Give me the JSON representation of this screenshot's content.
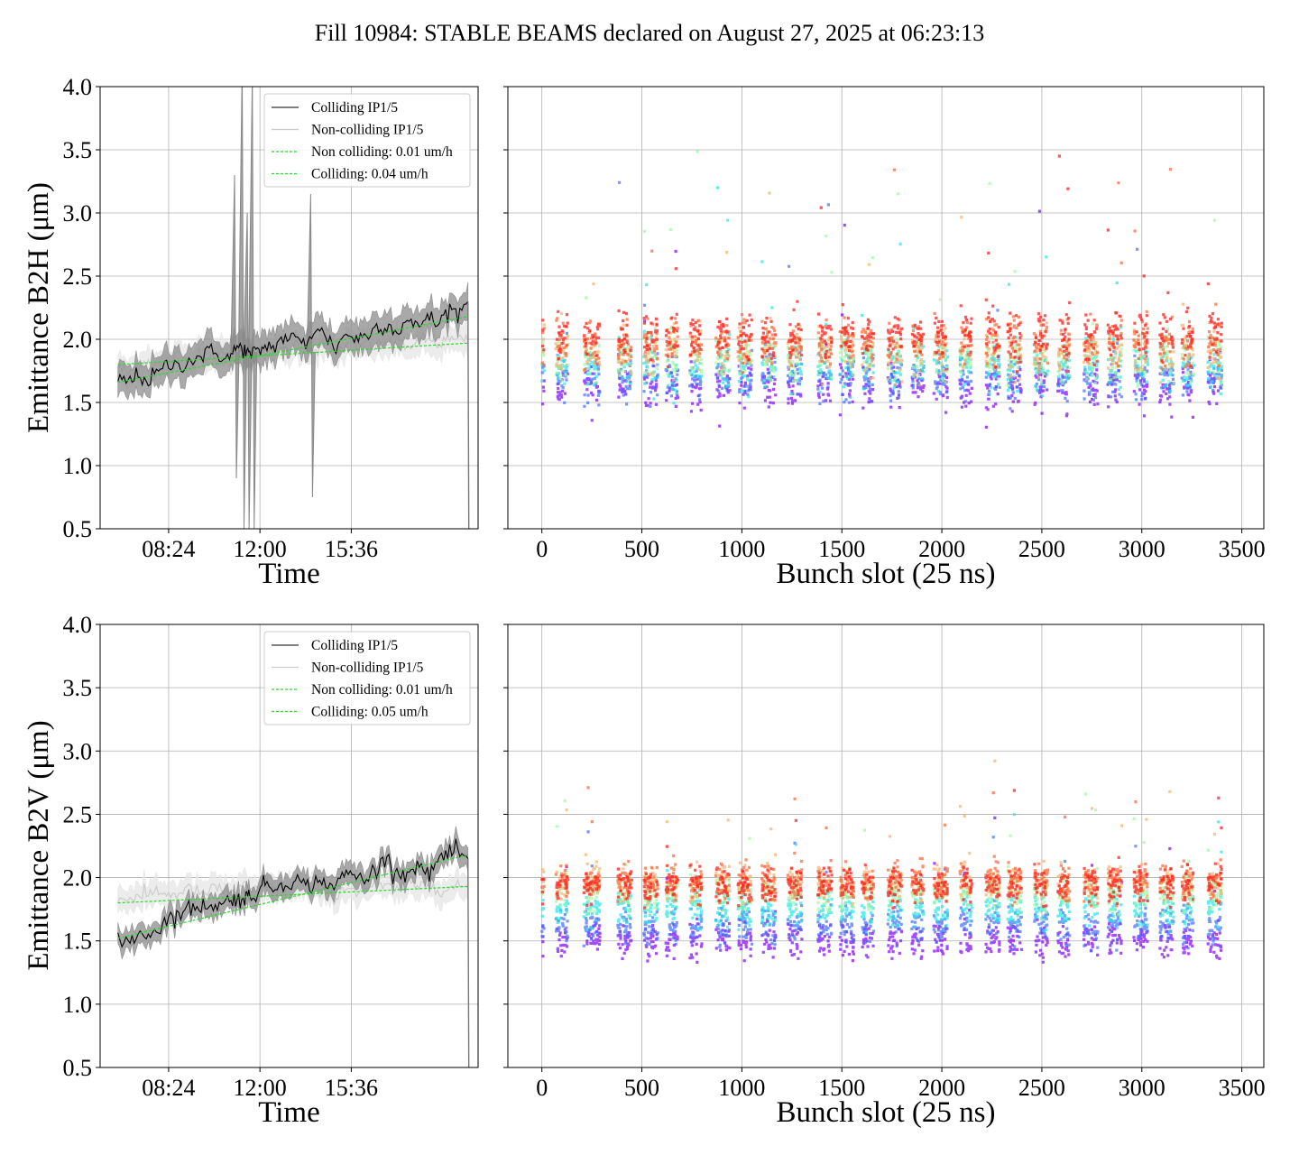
{
  "figure_title": "Fill 10984: STABLE BEAMS declared on August 27, 2025 at 06:23:13",
  "colors": {
    "colliding": "#000000",
    "colliding_band": "#8c8c8c",
    "non_colliding": "#cccccc",
    "non_colliding_band": "#e6e6e6",
    "fit": "#22dd22",
    "grid": "#b0b0b0"
  },
  "chart_data": [
    {
      "type": "line",
      "panel": "top-left",
      "xlabel": "Time",
      "ylabel": "Emittance B2H (μm)",
      "ylim": [
        0.5,
        4.0
      ],
      "yticks": [
        "0.5",
        "1.0",
        "1.5",
        "2.0",
        "2.5",
        "3.0",
        "3.5",
        "4.0"
      ],
      "xlim_hours": [
        5.7,
        20.6
      ],
      "xticks": [
        {
          "value": 8.4,
          "label": "08:24"
        },
        {
          "value": 12.0,
          "label": "12:00"
        },
        {
          "value": 15.6,
          "label": "15:36"
        }
      ],
      "grid": true,
      "legend_position": "top-right",
      "legend": [
        "Colliding IP1/5",
        "Non-colliding IP1/5",
        "Non colliding: 0.01 um/h",
        "Colliding: 0.04 um/h"
      ],
      "x_hours": [
        6.4,
        6.8,
        7.2,
        7.6,
        8.0,
        8.4,
        8.8,
        9.2,
        9.6,
        10.0,
        10.4,
        10.8,
        11.1,
        11.4,
        11.6,
        11.9,
        12.2,
        12.6,
        13.0,
        13.4,
        13.8,
        14.2,
        14.6,
        15.0,
        15.4,
        15.8,
        16.2,
        16.6,
        17.0,
        17.4,
        17.8,
        18.2,
        18.6,
        19.0,
        19.4,
        19.8,
        20.2
      ],
      "series": [
        {
          "name": "Colliding IP1/5",
          "values": [
            1.7,
            1.66,
            1.72,
            1.67,
            1.74,
            1.8,
            1.79,
            1.83,
            1.86,
            1.9,
            1.88,
            1.85,
            1.94,
            1.92,
            1.87,
            1.9,
            1.94,
            1.95,
            2.02,
            2.0,
            1.96,
            2.1,
            2.02,
            1.93,
            2.05,
            2.0,
            2.03,
            2.1,
            2.12,
            2.06,
            2.15,
            2.08,
            2.2,
            2.1,
            2.25,
            2.2,
            2.3
          ],
          "band_half_width": 0.12
        },
        {
          "name": "Non-colliding IP1/5",
          "values": [
            1.78,
            1.73,
            1.8,
            1.83,
            1.79,
            1.82,
            1.87,
            1.84,
            1.9,
            1.86,
            1.89,
            1.86,
            1.91,
            1.88,
            1.9,
            1.93,
            1.91,
            1.95,
            1.9,
            1.96,
            1.94,
            1.92,
            1.97,
            1.9,
            1.95,
            1.94,
            1.98,
            1.94,
            1.97,
            1.99,
            1.95,
            1.97,
            2.0,
            1.96,
            2.0,
            1.99,
            1.98
          ],
          "band_half_width": 0.1
        },
        {
          "name": "Non colliding: 0.01 um/h",
          "fit": [
            [
              6.4,
              1.8
            ],
            [
              20.2,
              1.97
            ]
          ]
        },
        {
          "name": "Colliding: 0.04 um/h",
          "fit": [
            [
              6.4,
              1.66
            ],
            [
              20.2,
              2.18
            ]
          ]
        }
      ],
      "spikes_hours": [
        11.0,
        11.3,
        11.5,
        11.7,
        14.0
      ]
    },
    {
      "type": "scatter",
      "panel": "top-right",
      "xlabel": "Bunch slot (25 ns)",
      "ylabel": "",
      "xlim": [
        -170,
        3610
      ],
      "ylim": [
        0.5,
        4.0
      ],
      "xticks": [
        "0",
        "500",
        "1000",
        "1500",
        "2000",
        "2500",
        "3000",
        "3500"
      ],
      "grid": true,
      "colormap": "rainbow (purple = early, red = late)",
      "trains": [
        [
          0,
          12
        ],
        [
          70,
          130
        ],
        [
          210,
          290
        ],
        [
          380,
          450
        ],
        [
          510,
          580
        ],
        [
          620,
          680
        ],
        [
          740,
          800
        ],
        [
          870,
          940
        ],
        [
          980,
          1050
        ],
        [
          1100,
          1170
        ],
        [
          1230,
          1300
        ],
        [
          1380,
          1450
        ],
        [
          1490,
          1560
        ],
        [
          1600,
          1660
        ],
        [
          1730,
          1800
        ],
        [
          1850,
          1910
        ],
        [
          1960,
          2030
        ],
        [
          2090,
          2150
        ],
        [
          2220,
          2290
        ],
        [
          2330,
          2400
        ],
        [
          2460,
          2530
        ],
        [
          2580,
          2640
        ],
        [
          2710,
          2780
        ],
        [
          2830,
          2900
        ],
        [
          2960,
          3030
        ],
        [
          3090,
          3160
        ],
        [
          3200,
          3260
        ],
        [
          3330,
          3400
        ]
      ],
      "emittance_evolution": [
        {
          "stage": "early",
          "color": "#7f00ff",
          "mean": 1.62
        },
        {
          "stage": "",
          "color": "#3f6cff",
          "mean": 1.7
        },
        {
          "stage": "",
          "color": "#22e5e5",
          "mean": 1.78
        },
        {
          "stage": "",
          "color": "#9ff7a0",
          "mean": 1.85
        },
        {
          "stage": "",
          "color": "#f4b06a",
          "mean": 1.9
        },
        {
          "stage": "",
          "color": "#ff6030",
          "mean": 1.98
        },
        {
          "stage": "late",
          "color": "#ff1010",
          "mean": 2.03
        }
      ]
    },
    {
      "type": "line",
      "panel": "bottom-left",
      "xlabel": "Time",
      "ylabel": "Emittance B2V (μm)",
      "ylim": [
        0.5,
        4.0
      ],
      "yticks": [
        "0.5",
        "1.0",
        "1.5",
        "2.0",
        "2.5",
        "3.0",
        "3.5",
        "4.0"
      ],
      "xlim_hours": [
        5.7,
        20.6
      ],
      "xticks": [
        {
          "value": 8.4,
          "label": "08:24"
        },
        {
          "value": 12.0,
          "label": "12:00"
        },
        {
          "value": 15.6,
          "label": "15:36"
        }
      ],
      "grid": true,
      "legend_position": "top-right",
      "legend": [
        "Colliding IP1/5",
        "Non-colliding IP1/5",
        "Non colliding: 0.01 um/h",
        "Colliding: 0.05 um/h"
      ],
      "x_hours": [
        6.4,
        6.8,
        7.2,
        7.6,
        8.0,
        8.4,
        8.8,
        9.2,
        9.6,
        10.0,
        10.4,
        10.8,
        11.1,
        11.4,
        11.6,
        11.9,
        12.2,
        12.6,
        13.0,
        13.4,
        13.8,
        14.2,
        14.6,
        15.0,
        15.4,
        15.8,
        16.2,
        16.6,
        17.0,
        17.4,
        17.8,
        18.2,
        18.6,
        19.0,
        19.4,
        19.8,
        20.2
      ],
      "series": [
        {
          "name": "Colliding IP1/5",
          "values": [
            1.48,
            1.5,
            1.56,
            1.55,
            1.6,
            1.68,
            1.71,
            1.75,
            1.77,
            1.79,
            1.78,
            1.82,
            1.84,
            1.83,
            1.86,
            1.88,
            1.95,
            1.92,
            1.96,
            1.99,
            1.93,
            1.96,
            1.97,
            1.92,
            2.05,
            2.0,
            1.99,
            2.08,
            2.15,
            2.05,
            2.02,
            2.13,
            2.0,
            2.14,
            2.18,
            2.2,
            2.15
          ],
          "band_half_width": 0.08
        },
        {
          "name": "Non-colliding IP1/5",
          "values": [
            1.82,
            1.85,
            1.83,
            1.87,
            1.9,
            1.86,
            1.88,
            1.91,
            1.87,
            1.89,
            1.92,
            1.88,
            1.9,
            1.93,
            1.89,
            1.92,
            1.94,
            1.9,
            1.93,
            1.91,
            1.95,
            1.9,
            1.88,
            1.86,
            1.93,
            1.9,
            1.92,
            1.95,
            1.92,
            1.9,
            1.94,
            1.92,
            1.95,
            1.93,
            1.91,
            1.94,
            1.92
          ],
          "band_half_width": 0.09
        },
        {
          "name": "Non colliding: 0.01 um/h",
          "fit": [
            [
              6.4,
              1.8
            ],
            [
              20.2,
              1.93
            ]
          ]
        },
        {
          "name": "Colliding: 0.05 um/h",
          "fit": [
            [
              6.4,
              1.52
            ],
            [
              20.2,
              2.18
            ]
          ]
        }
      ],
      "spikes_hours": []
    },
    {
      "type": "scatter",
      "panel": "bottom-right",
      "xlabel": "Bunch slot (25 ns)",
      "ylabel": "",
      "xlim": [
        -170,
        3610
      ],
      "ylim": [
        0.5,
        4.0
      ],
      "xticks": [
        "0",
        "500",
        "1000",
        "1500",
        "2000",
        "2500",
        "3000",
        "3500"
      ],
      "grid": true,
      "colormap": "rainbow (purple = early, red = late)",
      "trains": [
        [
          0,
          12
        ],
        [
          70,
          130
        ],
        [
          210,
          290
        ],
        [
          380,
          450
        ],
        [
          510,
          580
        ],
        [
          620,
          680
        ],
        [
          740,
          800
        ],
        [
          870,
          940
        ],
        [
          980,
          1050
        ],
        [
          1100,
          1170
        ],
        [
          1230,
          1300
        ],
        [
          1380,
          1450
        ],
        [
          1490,
          1560
        ],
        [
          1600,
          1660
        ],
        [
          1730,
          1800
        ],
        [
          1850,
          1910
        ],
        [
          1960,
          2030
        ],
        [
          2090,
          2150
        ],
        [
          2220,
          2290
        ],
        [
          2330,
          2400
        ],
        [
          2460,
          2530
        ],
        [
          2580,
          2640
        ],
        [
          2710,
          2780
        ],
        [
          2830,
          2900
        ],
        [
          2960,
          3030
        ],
        [
          3090,
          3160
        ],
        [
          3200,
          3260
        ],
        [
          3330,
          3400
        ]
      ],
      "emittance_evolution": [
        {
          "stage": "early",
          "color": "#7f00ff",
          "mean": 1.5
        },
        {
          "stage": "",
          "color": "#3f6cff",
          "mean": 1.62
        },
        {
          "stage": "",
          "color": "#22e5e5",
          "mean": 1.75
        },
        {
          "stage": "",
          "color": "#9ff7a0",
          "mean": 1.88
        },
        {
          "stage": "",
          "color": "#f4b06a",
          "mean": 1.95
        },
        {
          "stage": "",
          "color": "#ff6030",
          "mean": 1.97
        },
        {
          "stage": "late",
          "color": "#ff1010",
          "mean": 1.94
        }
      ]
    }
  ]
}
